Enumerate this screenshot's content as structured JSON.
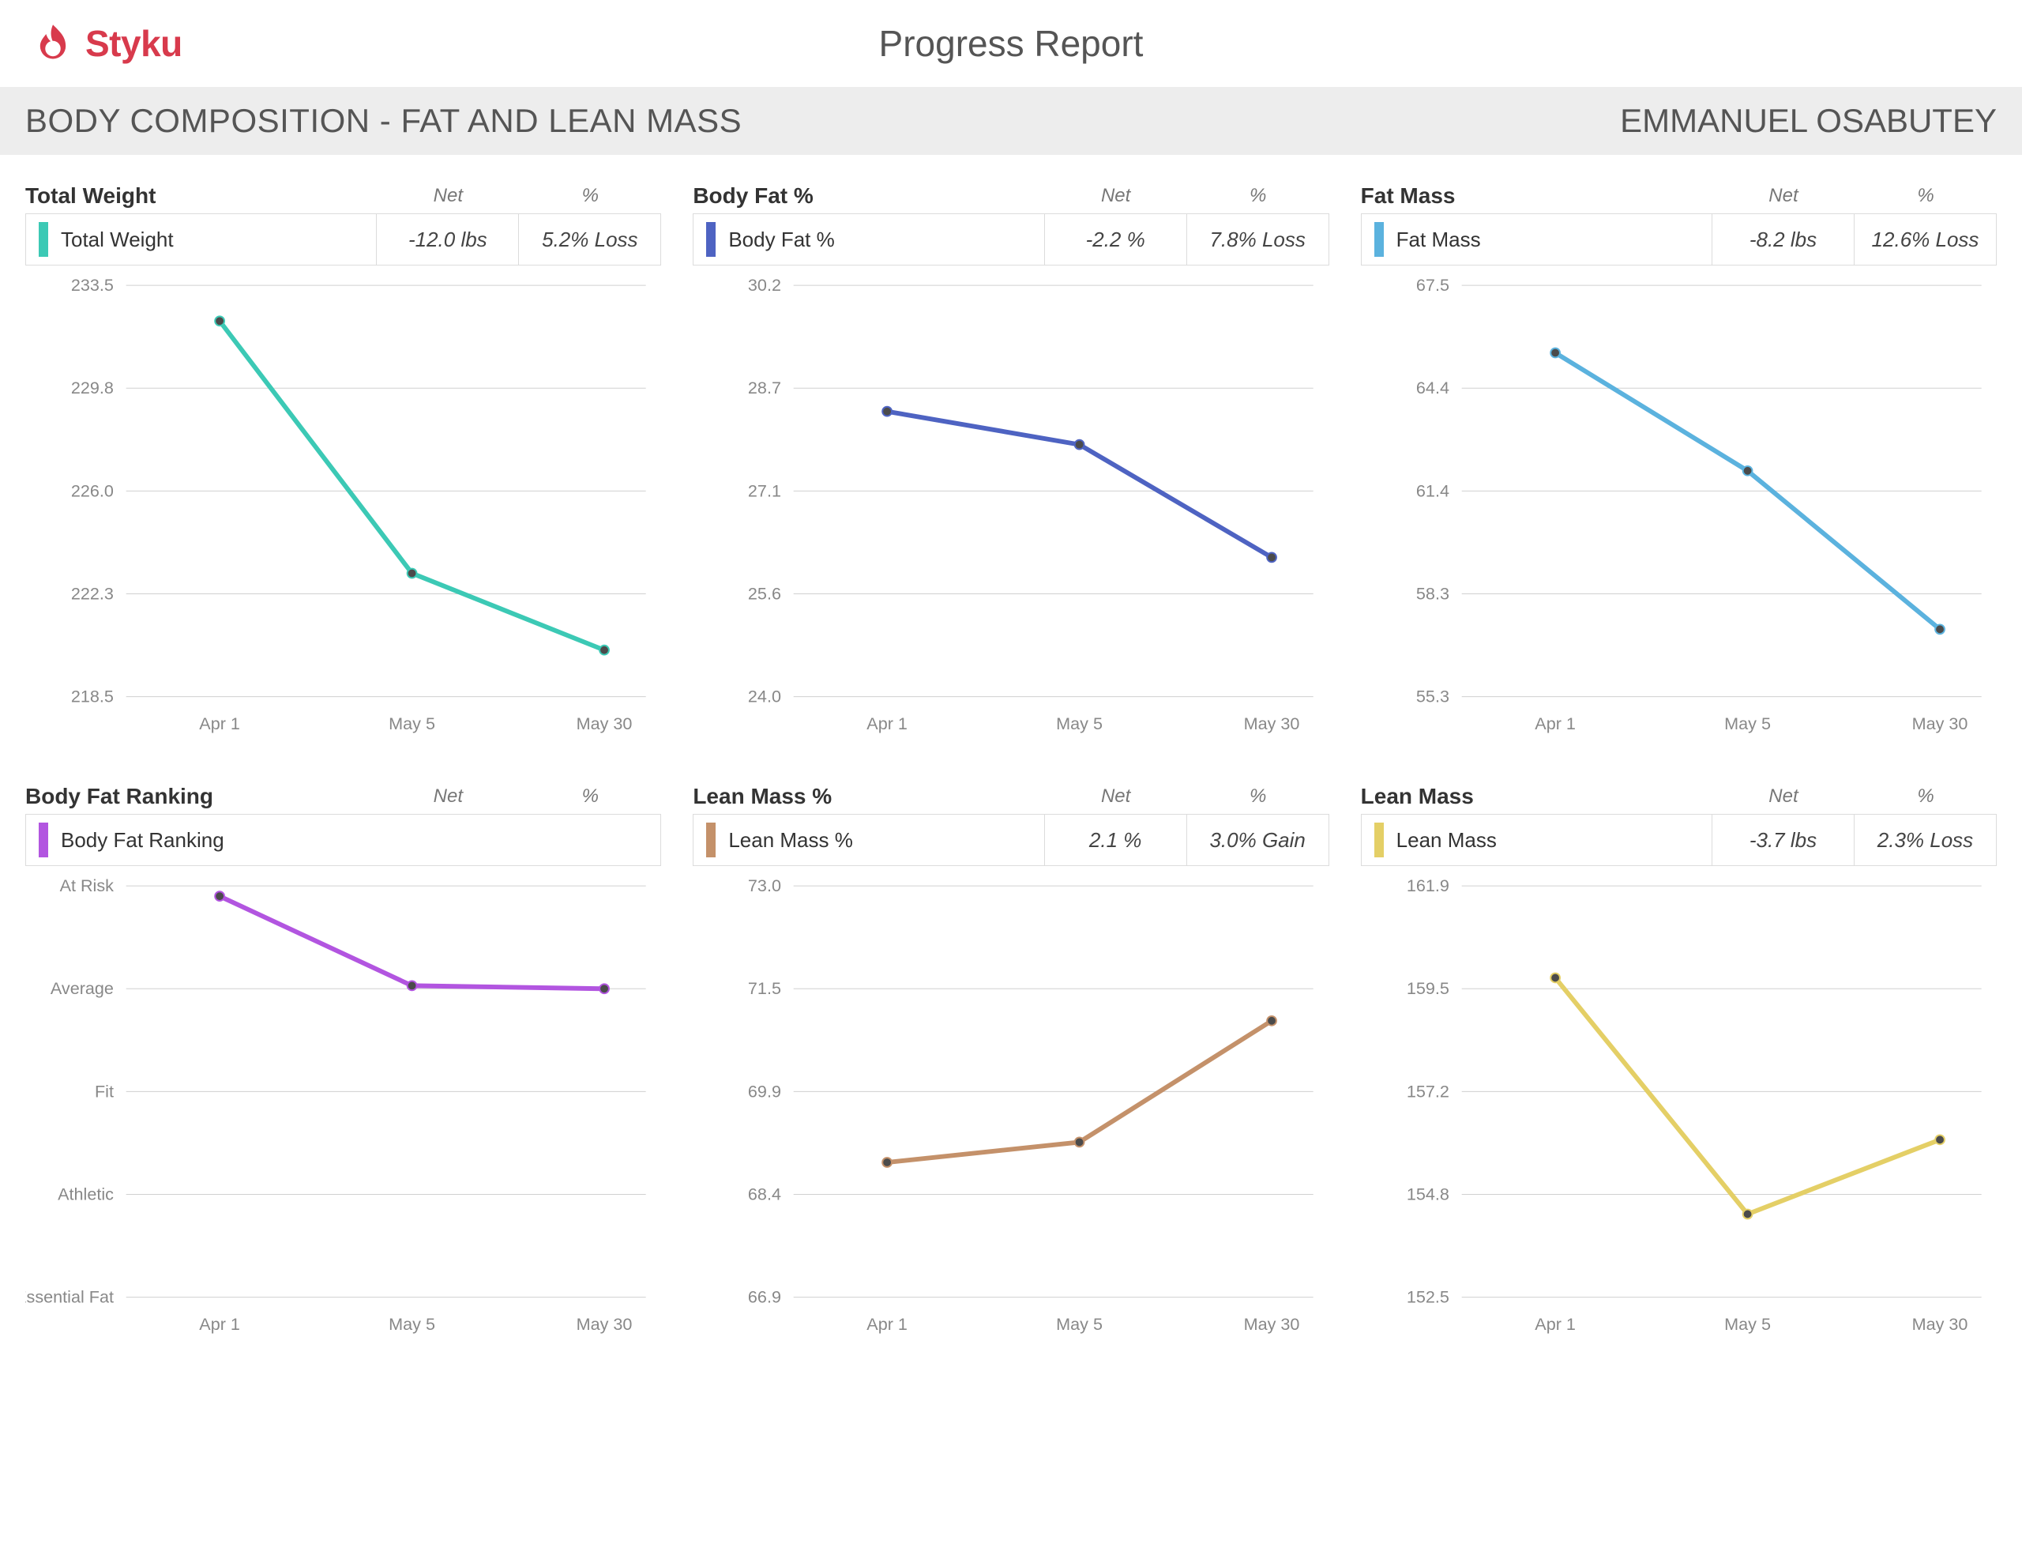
{
  "brand": {
    "name": "Styku",
    "color": "#d83a4c"
  },
  "report_title": "Progress Report",
  "section_title": "BODY COMPOSITION - FAT AND LEAN MASS",
  "user_name": "EMMANUEL OSABUTEY",
  "column_headers": {
    "net": "Net",
    "pct": "%"
  },
  "x_labels": [
    "Apr 1",
    "May 5",
    "May 30"
  ],
  "x_positions": [
    0.18,
    0.55,
    0.92
  ],
  "panels": [
    {
      "key": "total_weight",
      "title": "Total Weight",
      "legend": "Total Weight",
      "net": "-12.0 lbs",
      "pct": "5.2% Loss",
      "color": "#3cc9b5",
      "swatch_color": "#3cc9b5",
      "type": "line",
      "y_ticks": [
        "233.5",
        "229.8",
        "226.0",
        "222.3",
        "218.5"
      ],
      "y_min": 218.5,
      "y_max": 233.5,
      "values": [
        232.2,
        223.0,
        220.2
      ]
    },
    {
      "key": "body_fat_pct",
      "title": "Body Fat %",
      "legend": "Body Fat %",
      "net": "-2.2 %",
      "pct": "7.8% Loss",
      "color": "#4e63c2",
      "swatch_color": "#4e63c2",
      "type": "line",
      "y_ticks": [
        "30.2",
        "28.7",
        "27.1",
        "25.6",
        "24.0"
      ],
      "y_min": 24.0,
      "y_max": 30.2,
      "values": [
        28.3,
        27.8,
        26.1
      ]
    },
    {
      "key": "fat_mass",
      "title": "Fat Mass",
      "legend": "Fat Mass",
      "net": "-8.2 lbs",
      "pct": "12.6% Loss",
      "color": "#5bb2de",
      "swatch_color": "#5bb2de",
      "type": "line",
      "y_ticks": [
        "67.5",
        "64.4",
        "61.4",
        "58.3",
        "55.3"
      ],
      "y_min": 55.3,
      "y_max": 67.5,
      "values": [
        65.5,
        62.0,
        57.3
      ]
    },
    {
      "key": "body_fat_ranking",
      "title": "Body Fat Ranking",
      "legend": "Body Fat Ranking",
      "net": "",
      "pct": "",
      "color": "#b255e0",
      "swatch_color": "#b255e0",
      "type": "line",
      "categorical": true,
      "y_ticks": [
        "At Risk",
        "Average",
        "Fit",
        "Athletic",
        "Essential Fat"
      ],
      "y_min": 0,
      "y_max": 4,
      "values": [
        3.9,
        3.03,
        3.0
      ]
    },
    {
      "key": "lean_mass_pct",
      "title": "Lean Mass %",
      "legend": "Lean Mass %",
      "net": "2.1 %",
      "pct": "3.0% Gain",
      "color": "#c4916a",
      "swatch_color": "#c4916a",
      "type": "line",
      "y_ticks": [
        "73.0",
        "71.5",
        "69.9",
        "68.4",
        "66.9"
      ],
      "y_min": 66.9,
      "y_max": 73.0,
      "values": [
        68.9,
        69.2,
        71.0
      ]
    },
    {
      "key": "lean_mass",
      "title": "Lean Mass",
      "legend": "Lean Mass",
      "net": "-3.7 lbs",
      "pct": "2.3% Loss",
      "color": "#e4cf66",
      "swatch_color": "#e4cf66",
      "type": "line",
      "y_ticks": [
        "161.9",
        "159.5",
        "157.2",
        "154.8",
        "152.5"
      ],
      "y_min": 152.5,
      "y_max": 161.9,
      "values": [
        159.8,
        154.4,
        156.1
      ]
    }
  ],
  "chart_style": {
    "grid_color": "#d0d0d0",
    "tick_color": "#888888",
    "tick_fontsize": 22,
    "point_fill": "#4b4b4b",
    "point_radius": 5,
    "line_width": 6,
    "background": "#ffffff"
  }
}
